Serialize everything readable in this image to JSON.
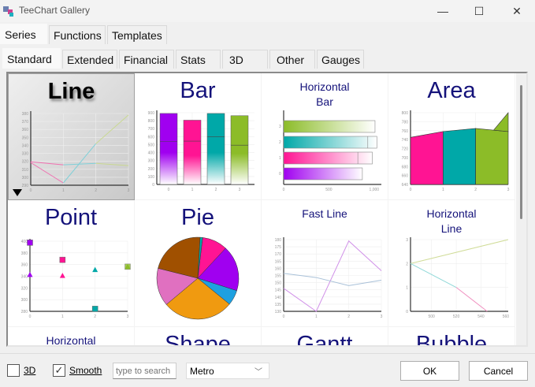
{
  "window": {
    "title": "TeeChart Gallery",
    "min": "—",
    "max": "☐",
    "close": "✕"
  },
  "outer_tabs": [
    {
      "label": "Series",
      "active": true
    },
    {
      "label": "Functions"
    },
    {
      "label": "Templates"
    }
  ],
  "inner_tabs": [
    {
      "label": "Standard",
      "active": true
    },
    {
      "label": "Extended"
    },
    {
      "label": "Financial"
    },
    {
      "label": "Stats"
    },
    {
      "label": "3D"
    },
    {
      "label": "Other"
    },
    {
      "label": "Gauges"
    }
  ],
  "colors": {
    "purple": "#a000f0",
    "pink": "#ff1493",
    "teal": "#00a8a8",
    "green": "#8cbc28",
    "title": "#14127a"
  },
  "gallery": [
    {
      "title": "Line",
      "size": "big",
      "selected": true,
      "type": "line",
      "yticks": [
        "290",
        "300",
        "310",
        "320",
        "330",
        "340",
        "350",
        "360",
        "370",
        "380"
      ],
      "xticks": [
        "0",
        "1",
        "2",
        "3"
      ],
      "ylim": [
        287,
        382
      ],
      "xlim": [
        0,
        3
      ],
      "series": [
        {
          "values": [
            317,
            290,
            342,
            380
          ]
        },
        {
          "values": [
            318,
            314,
            316,
            313
          ]
        }
      ],
      "segment_colors": [
        "#f070b0",
        "#80d0d8",
        "#c8d890"
      ]
    },
    {
      "title": "Bar",
      "size": "big",
      "type": "bar",
      "yticks": [
        "0",
        "100",
        "200",
        "300",
        "400",
        "500",
        "600",
        "700",
        "800",
        "900"
      ],
      "xticks": [
        "0",
        "1",
        "2",
        "3"
      ],
      "ylim": [
        0,
        960
      ],
      "values": [
        950,
        860,
        950,
        920
      ],
      "marks": [
        575,
        580,
        640,
        525
      ]
    },
    {
      "title": "Horizontal\nBar",
      "size": "small",
      "type": "hbar",
      "yticks": [
        "0",
        "1",
        "2",
        "3"
      ],
      "xticks": [
        "0",
        "500",
        "1,000"
      ],
      "xlim": [
        0,
        1080
      ],
      "values": [
        870,
        980,
        1030,
        1010
      ],
      "marks": [
        null,
        820,
        930,
        null
      ]
    },
    {
      "title": "Area",
      "size": "big",
      "type": "area",
      "yticks": [
        "640",
        "660",
        "680",
        "700",
        "720",
        "740",
        "760",
        "780",
        "800"
      ],
      "xticks": [
        "0",
        "1",
        "2",
        "3"
      ],
      "ylim": [
        640,
        800
      ],
      "values": [
        745,
        758,
        765,
        758
      ],
      "spike": 800
    },
    {
      "title": "Point",
      "size": "big",
      "type": "point",
      "yticks": [
        "280",
        "300",
        "320",
        "340",
        "360",
        "380",
        "400"
      ],
      "xticks": [
        "0",
        "1",
        "2",
        "3"
      ],
      "ylim": [
        265,
        408
      ],
      "triangles": [
        340,
        338,
        350,
        356
      ],
      "squares": [
        405,
        370,
        270,
        356
      ]
    },
    {
      "title": "Pie",
      "size": "big",
      "type": "pie",
      "slices": [
        {
          "value": 10,
          "color": "#ff1493"
        },
        {
          "value": 18,
          "color": "#a000f0"
        },
        {
          "value": 6,
          "color": "#1ea0e0"
        },
        {
          "value": 28,
          "color": "#f09a10"
        },
        {
          "value": 15,
          "color": "#e070c0"
        },
        {
          "value": 22,
          "color": "#a05000"
        },
        {
          "value": 1,
          "color": "#00a8a8"
        }
      ]
    },
    {
      "title": "Fast Line",
      "size": "small",
      "type": "fastline",
      "yticks": [
        "130",
        "135",
        "140",
        "145",
        "150",
        "155",
        "160",
        "165",
        "170",
        "175",
        "180"
      ],
      "xticks": [
        "0",
        "1",
        "2",
        "3"
      ],
      "ylim": [
        130,
        183
      ],
      "series": [
        {
          "values": [
            147,
            130,
            182,
            160
          ],
          "color": "#d090e8"
        },
        {
          "values": [
            158,
            155,
            149,
            153
          ],
          "color": "#a8c0d8"
        }
      ]
    },
    {
      "title": "Horizontal\nLine",
      "size": "small",
      "type": "hline",
      "yticks": [
        "0",
        "1",
        "2",
        "3"
      ],
      "xticks": [
        "500",
        "520",
        "540",
        "560"
      ],
      "xlim": [
        483,
        562
      ],
      "segments": [
        {
          "from": [
            483,
            2
          ],
          "to": [
            562,
            3
          ],
          "color": "#d0dc98"
        },
        {
          "from": [
            483,
            2
          ],
          "to": [
            520,
            1
          ],
          "color": "#90d8d8"
        },
        {
          "from": [
            520,
            1
          ],
          "to": [
            545,
            0
          ],
          "color": "#f090c0"
        }
      ]
    },
    {
      "title": "Horizontal",
      "size": "small",
      "type": "none"
    },
    {
      "title": "Shape",
      "size": "big",
      "type": "none"
    },
    {
      "title": "Gantt",
      "size": "big",
      "type": "none"
    },
    {
      "title": "Bubble",
      "size": "big",
      "type": "none"
    }
  ],
  "footer": {
    "chk3d_label": "3D",
    "chk3d": false,
    "smooth_label": "Smooth",
    "smooth": true,
    "search_placeholder": "type to search",
    "theme": "Metro",
    "ok": "OK",
    "cancel": "Cancel"
  }
}
